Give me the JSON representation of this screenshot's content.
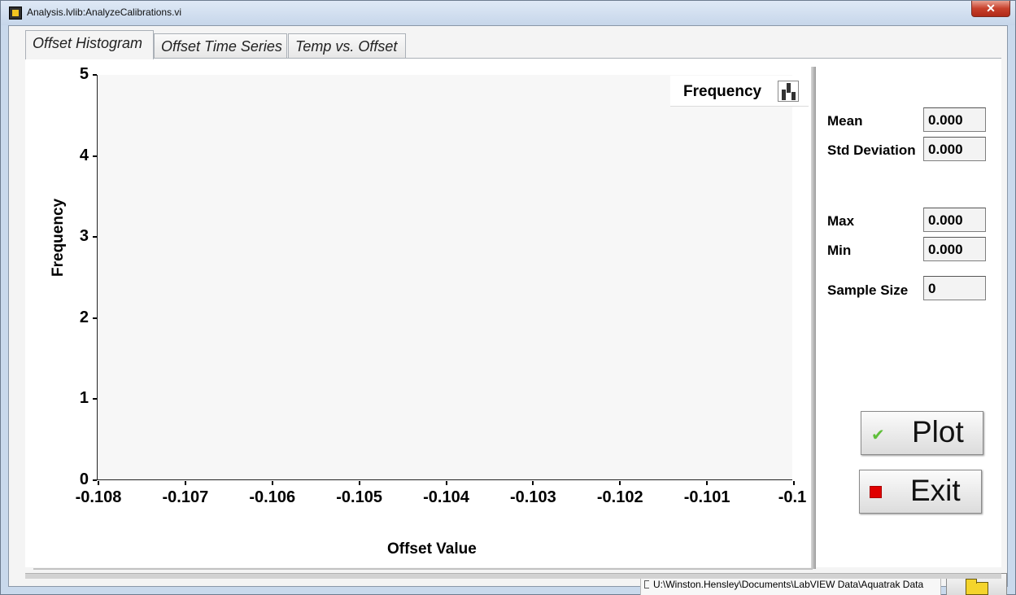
{
  "window": {
    "title": "Analysis.lvlib:AnalyzeCalibrations.vi",
    "close_label": "✕"
  },
  "tabs": [
    {
      "label": "Offset Histogram",
      "active": true
    },
    {
      "label": "Offset Time Series",
      "active": false
    },
    {
      "label": "Temp vs. Offset",
      "active": false
    }
  ],
  "chart_data": {
    "type": "bar",
    "title": "",
    "xlabel": "Offset Value",
    "ylabel": "Frequency",
    "legend": [
      "Frequency"
    ],
    "legend_placement": "top-right",
    "xlim": [
      -0.108,
      -0.1
    ],
    "ylim": [
      0,
      5
    ],
    "x_ticks": [
      "-0.108",
      "-0.107",
      "-0.106",
      "-0.105",
      "-0.104",
      "-0.103",
      "-0.102",
      "-0.101",
      "-0.1"
    ],
    "y_ticks": [
      "0",
      "1",
      "2",
      "3",
      "4",
      "5"
    ],
    "series": [],
    "grid": false
  },
  "readouts": {
    "mean": {
      "label": "Mean",
      "value": "0.000"
    },
    "std": {
      "label": "Std Deviation",
      "value": "0.000"
    },
    "max": {
      "label": "Max",
      "value": "0.000"
    },
    "min": {
      "label": "Min",
      "value": "0.000"
    },
    "sample_size": {
      "label": "Sample Size",
      "value": "0"
    }
  },
  "buttons": {
    "plot": {
      "label": "Plot",
      "icon": "checkmark-icon"
    },
    "exit": {
      "label": "Exit",
      "icon": "stop-icon",
      "color": "#e00000"
    }
  },
  "file": {
    "path": "U:\\Winston.Hensley\\Documents\\LabVIEW Data\\Aquatrak Data",
    "browse_icon": "folder-icon"
  }
}
